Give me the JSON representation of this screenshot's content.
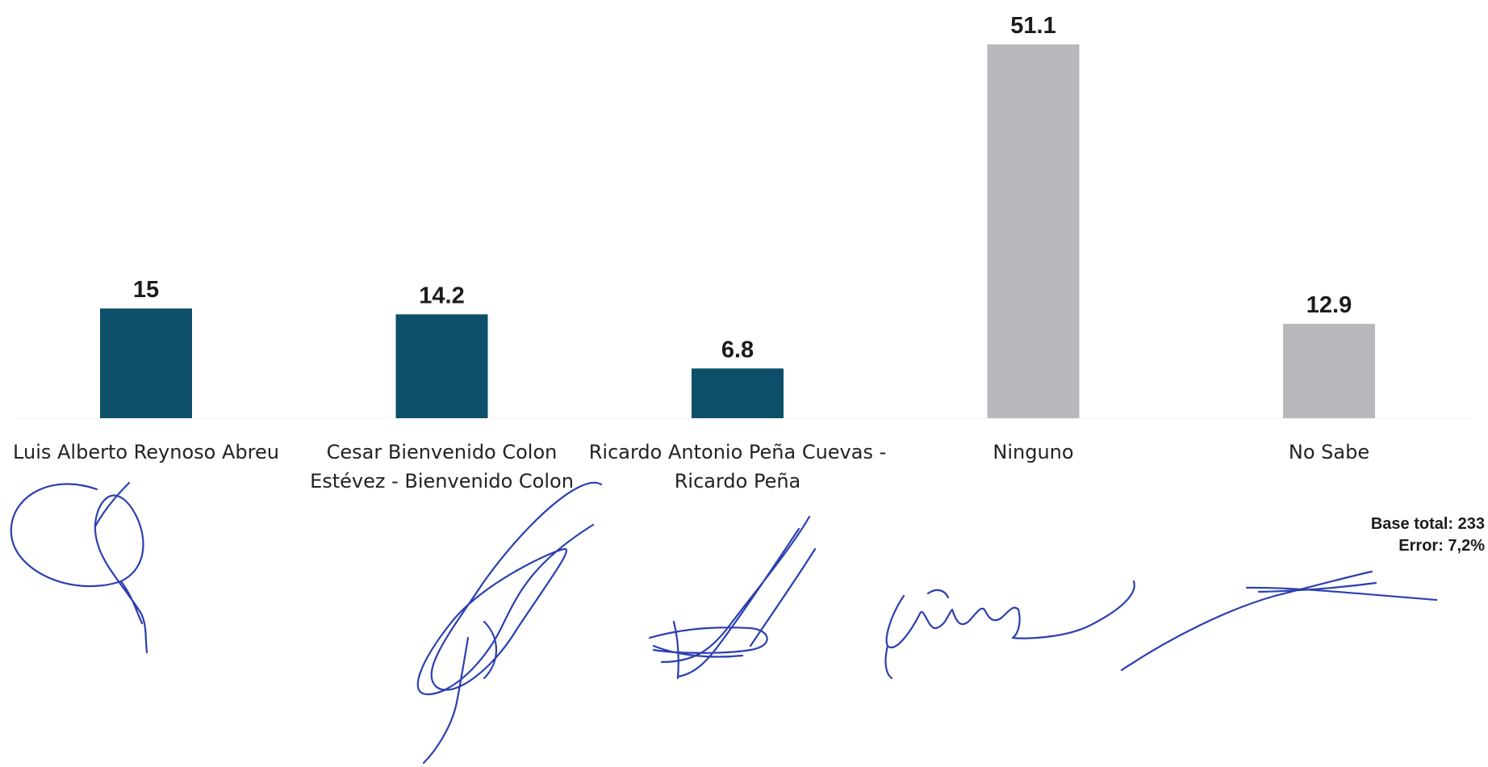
{
  "chart_data": {
    "type": "bar",
    "categories": [
      "Luis Alberto Reynoso Abreu",
      "Cesar Bienvenido Colon Estévez - Bienvenido Colon",
      "Ricardo Antonio Peña Cuevas - Ricardo Peña",
      "Ninguno",
      "No Sabe"
    ],
    "category_lines": [
      [
        "Luis Alberto Reynoso Abreu"
      ],
      [
        "Cesar Bienvenido Colon",
        "Estévez - Bienvenido Colon"
      ],
      [
        "Ricardo Antonio Peña Cuevas -",
        "Ricardo Peña"
      ],
      [
        "Ninguno"
      ],
      [
        "No Sabe"
      ]
    ],
    "values": [
      15,
      14.2,
      6.8,
      51.1,
      12.9
    ],
    "value_labels": [
      "15",
      "14.2",
      "6.8",
      "51.1",
      "12.9"
    ],
    "bar_colors": [
      "#0d4f68",
      "#0d4f68",
      "#0d4f68",
      "#b8b9bd",
      "#b8b9bd"
    ],
    "title": "",
    "xlabel": "",
    "ylabel": "",
    "ylim": [
      0,
      51.1
    ],
    "grid": false,
    "legend": "none"
  },
  "footnote": {
    "base": "Base total: 233",
    "error": "Error: 7,2%"
  },
  "colors": {
    "candidate_bar": "#0d4f68",
    "other_bar": "#b8b9bd",
    "signature_ink": "#2b3fb0"
  }
}
